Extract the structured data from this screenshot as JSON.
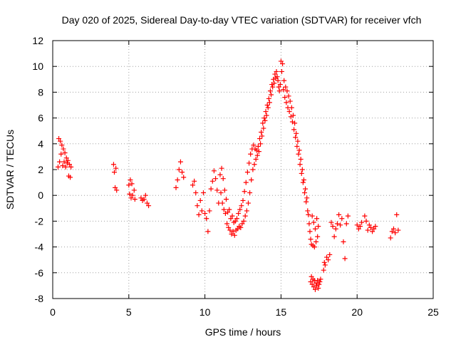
{
  "chart_data": {
    "type": "scatter",
    "title": "Day 020 of 2025, Sidereal Day-to-day VTEC variation (SDTVAR) for receiver vfch",
    "xlabel": "GPS time / hours",
    "ylabel": "SDTVAR / TECUs",
    "xlim": [
      0,
      25
    ],
    "ylim": [
      -8,
      12
    ],
    "xticks": [
      0,
      5,
      10,
      15,
      20,
      25
    ],
    "yticks": [
      -8,
      -6,
      -4,
      -2,
      0,
      2,
      4,
      6,
      8,
      10,
      12
    ],
    "xtick_labels": [
      "0",
      "5",
      "10",
      "15",
      "20",
      "25"
    ],
    "ytick_labels": [
      "-8",
      "-6",
      "-4",
      "-2",
      "0",
      "2",
      "4",
      "6",
      "8",
      "10",
      "12"
    ],
    "grid": true,
    "marker": "+",
    "color": "#ff0000",
    "series": [
      {
        "name": "SDTVAR",
        "points": [
          [
            0.35,
            2.2
          ],
          [
            0.4,
            4.4
          ],
          [
            0.45,
            2.6
          ],
          [
            0.5,
            4.2
          ],
          [
            0.55,
            3.2
          ],
          [
            0.6,
            3.9
          ],
          [
            0.65,
            2.3
          ],
          [
            0.7,
            3.6
          ],
          [
            0.75,
            2.6
          ],
          [
            0.8,
            3.3
          ],
          [
            0.85,
            2.2
          ],
          [
            0.9,
            2.9
          ],
          [
            0.95,
            2.5
          ],
          [
            1.0,
            2.7
          ],
          [
            1.05,
            1.5
          ],
          [
            1.1,
            2.4
          ],
          [
            1.15,
            1.4
          ],
          [
            1.2,
            2.2
          ],
          [
            4.0,
            2.4
          ],
          [
            4.05,
            1.8
          ],
          [
            4.1,
            0.6
          ],
          [
            4.15,
            2.1
          ],
          [
            4.2,
            0.4
          ],
          [
            5.0,
            0.8
          ],
          [
            5.05,
            0.1
          ],
          [
            5.1,
            1.2
          ],
          [
            5.15,
            -0.2
          ],
          [
            5.2,
            0.9
          ],
          [
            5.25,
            0.0
          ],
          [
            5.35,
            0.4
          ],
          [
            5.4,
            -0.3
          ],
          [
            5.8,
            -0.2
          ],
          [
            5.9,
            -0.4
          ],
          [
            6.0,
            -0.3
          ],
          [
            6.1,
            0.0
          ],
          [
            6.2,
            -0.6
          ],
          [
            6.3,
            -0.8
          ],
          [
            8.1,
            0.6
          ],
          [
            8.2,
            1.2
          ],
          [
            8.3,
            2.0
          ],
          [
            8.4,
            2.6
          ],
          [
            8.5,
            1.8
          ],
          [
            8.6,
            1.4
          ],
          [
            9.2,
            0.8
          ],
          [
            9.3,
            1.1
          ],
          [
            9.4,
            0.2
          ],
          [
            9.5,
            -0.8
          ],
          [
            9.6,
            -1.5
          ],
          [
            9.7,
            -0.4
          ],
          [
            9.8,
            -1.2
          ],
          [
            9.9,
            0.2
          ],
          [
            10.0,
            -1.4
          ],
          [
            10.1,
            -1.8
          ],
          [
            10.2,
            -2.8
          ],
          [
            10.3,
            -1.2
          ],
          [
            10.4,
            0.5
          ],
          [
            10.5,
            1.1
          ],
          [
            10.6,
            1.9
          ],
          [
            10.7,
            1.3
          ],
          [
            10.8,
            0.4
          ],
          [
            10.9,
            -0.6
          ],
          [
            11.0,
            1.6
          ],
          [
            11.05,
            0.2
          ],
          [
            11.1,
            2.1
          ],
          [
            11.15,
            -0.6
          ],
          [
            11.2,
            1.3
          ],
          [
            11.25,
            -1.1
          ],
          [
            11.3,
            0.4
          ],
          [
            11.35,
            -1.4
          ],
          [
            11.4,
            -0.3
          ],
          [
            11.45,
            -2.2
          ],
          [
            11.5,
            -1.3
          ],
          [
            11.55,
            -2.5
          ],
          [
            11.6,
            -1.1
          ],
          [
            11.65,
            -2.7
          ],
          [
            11.7,
            -1.8
          ],
          [
            11.75,
            -3.0
          ],
          [
            11.8,
            -1.6
          ],
          [
            11.85,
            -2.8
          ],
          [
            11.9,
            -2.1
          ],
          [
            11.95,
            -3.1
          ],
          [
            12.0,
            -2.0
          ],
          [
            12.05,
            -2.7
          ],
          [
            12.1,
            -1.8
          ],
          [
            12.15,
            -2.6
          ],
          [
            12.2,
            -1.4
          ],
          [
            12.25,
            -2.4
          ],
          [
            12.3,
            -1.1
          ],
          [
            12.35,
            -2.5
          ],
          [
            12.4,
            -0.8
          ],
          [
            12.45,
            -2.2
          ],
          [
            12.5,
            -0.4
          ],
          [
            12.55,
            -2.0
          ],
          [
            12.6,
            0.3
          ],
          [
            12.65,
            -1.6
          ],
          [
            12.7,
            1.0
          ],
          [
            12.75,
            -1.2
          ],
          [
            12.8,
            1.8
          ],
          [
            12.85,
            -0.6
          ],
          [
            12.9,
            2.5
          ],
          [
            12.95,
            0.2
          ],
          [
            13.0,
            3.2
          ],
          [
            13.05,
            1.2
          ],
          [
            13.1,
            3.6
          ],
          [
            13.15,
            2.0
          ],
          [
            13.2,
            3.9
          ],
          [
            13.25,
            2.4
          ],
          [
            13.3,
            3.6
          ],
          [
            13.35,
            2.8
          ],
          [
            13.4,
            3.5
          ],
          [
            13.45,
            3.1
          ],
          [
            13.5,
            3.8
          ],
          [
            13.55,
            3.4
          ],
          [
            13.6,
            4.4
          ],
          [
            13.65,
            4.0
          ],
          [
            13.7,
            4.9
          ],
          [
            13.75,
            4.6
          ],
          [
            13.8,
            5.6
          ],
          [
            13.85,
            5.2
          ],
          [
            13.9,
            6.0
          ],
          [
            13.95,
            5.8
          ],
          [
            14.0,
            6.5
          ],
          [
            14.05,
            6.2
          ],
          [
            14.1,
            7.0
          ],
          [
            14.15,
            6.8
          ],
          [
            14.2,
            7.5
          ],
          [
            14.25,
            7.2
          ],
          [
            14.3,
            8.1
          ],
          [
            14.35,
            7.8
          ],
          [
            14.4,
            8.6
          ],
          [
            14.45,
            8.4
          ],
          [
            14.5,
            9.0
          ],
          [
            14.55,
            8.7
          ],
          [
            14.6,
            9.4
          ],
          [
            14.65,
            9.1
          ],
          [
            14.7,
            9.6
          ],
          [
            14.75,
            9.2
          ],
          [
            14.8,
            8.9
          ],
          [
            14.85,
            8.4
          ],
          [
            14.9,
            8.1
          ],
          [
            14.95,
            8.6
          ],
          [
            15.0,
            10.4
          ],
          [
            15.05,
            9.6
          ],
          [
            15.1,
            10.2
          ],
          [
            15.15,
            8.2
          ],
          [
            15.2,
            8.9
          ],
          [
            15.25,
            7.6
          ],
          [
            15.3,
            8.4
          ],
          [
            15.35,
            7.2
          ],
          [
            15.4,
            8.1
          ],
          [
            15.45,
            6.8
          ],
          [
            15.5,
            7.7
          ],
          [
            15.55,
            6.5
          ],
          [
            15.6,
            7.3
          ],
          [
            15.65,
            6.1
          ],
          [
            15.7,
            6.8
          ],
          [
            15.75,
            5.7
          ],
          [
            15.8,
            6.2
          ],
          [
            15.85,
            5.1
          ],
          [
            15.9,
            5.6
          ],
          [
            15.95,
            4.5
          ],
          [
            16.0,
            4.8
          ],
          [
            16.05,
            3.8
          ],
          [
            16.1,
            4.2
          ],
          [
            16.15,
            3.2
          ],
          [
            16.2,
            3.5
          ],
          [
            16.25,
            2.4
          ],
          [
            16.3,
            2.8
          ],
          [
            16.35,
            1.7
          ],
          [
            16.4,
            2.0
          ],
          [
            16.45,
            1.0
          ],
          [
            16.5,
            1.2
          ],
          [
            16.55,
            0.2
          ],
          [
            16.6,
            0.5
          ],
          [
            16.65,
            -0.5
          ],
          [
            16.7,
            -0.2
          ],
          [
            16.75,
            -1.2
          ],
          [
            16.8,
            -1.5
          ],
          [
            16.85,
            -2.2
          ],
          [
            16.9,
            -2.8
          ],
          [
            16.95,
            -3.4
          ],
          [
            17.0,
            -3.8
          ],
          [
            17.05,
            -1.6
          ],
          [
            17.1,
            -3.9
          ],
          [
            17.15,
            -2.1
          ],
          [
            17.2,
            -4.0
          ],
          [
            17.25,
            -2.6
          ],
          [
            17.3,
            -3.6
          ],
          [
            17.35,
            -1.8
          ],
          [
            17.4,
            -3.2
          ],
          [
            17.45,
            -2.4
          ],
          [
            16.95,
            -6.7
          ],
          [
            17.0,
            -6.3
          ],
          [
            17.05,
            -6.9
          ],
          [
            17.1,
            -6.5
          ],
          [
            17.15,
            -7.1
          ],
          [
            17.2,
            -6.6
          ],
          [
            17.25,
            -7.3
          ],
          [
            17.3,
            -6.8
          ],
          [
            17.35,
            -7.0
          ],
          [
            17.4,
            -6.6
          ],
          [
            17.45,
            -7.2
          ],
          [
            17.5,
            -6.9
          ],
          [
            17.55,
            -6.7
          ],
          [
            17.6,
            -6.5
          ],
          [
            17.8,
            -5.8
          ],
          [
            17.85,
            -5.2
          ],
          [
            17.9,
            -5.4
          ],
          [
            18.0,
            -4.8
          ],
          [
            18.1,
            -5.0
          ],
          [
            18.2,
            -4.6
          ],
          [
            18.3,
            -2.1
          ],
          [
            18.4,
            -2.4
          ],
          [
            18.5,
            -3.2
          ],
          [
            18.6,
            -2.6
          ],
          [
            18.7,
            -2.2
          ],
          [
            18.8,
            -1.5
          ],
          [
            18.9,
            -2.3
          ],
          [
            19.0,
            -1.8
          ],
          [
            19.1,
            -3.6
          ],
          [
            19.2,
            -4.9
          ],
          [
            19.3,
            -2.2
          ],
          [
            19.4,
            -1.6
          ],
          [
            20.0,
            -2.3
          ],
          [
            20.1,
            -2.6
          ],
          [
            20.2,
            -2.4
          ],
          [
            20.3,
            -2.1
          ],
          [
            20.5,
            -1.6
          ],
          [
            20.6,
            -2.0
          ],
          [
            20.7,
            -2.7
          ],
          [
            20.8,
            -2.3
          ],
          [
            20.9,
            -2.5
          ],
          [
            21.0,
            -2.8
          ],
          [
            21.1,
            -2.6
          ],
          [
            21.2,
            -2.4
          ],
          [
            22.2,
            -3.3
          ],
          [
            22.3,
            -2.8
          ],
          [
            22.4,
            -2.6
          ],
          [
            22.5,
            -2.9
          ],
          [
            22.6,
            -1.5
          ],
          [
            22.7,
            -2.7
          ]
        ]
      }
    ]
  }
}
